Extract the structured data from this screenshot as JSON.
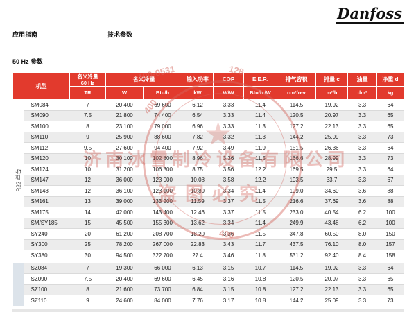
{
  "page": {
    "logo_text": "Danfoss",
    "crumb_left": "应用指南",
    "crumb_right": "技术参数",
    "section_title": "50 Hz 参数"
  },
  "colors": {
    "header_red": "#e23a2d",
    "row_alt_gray": "#ececec",
    "group_band_blue": "#dce3ea",
    "watermark_red": "#d4675e"
  },
  "table": {
    "header": {
      "model": "机型",
      "capacity60_line1": "名义冷量",
      "capacity60_line2": "60 Hz",
      "capacity60_unit": "TR",
      "capacity": "名义冷量",
      "capacity_w_unit": "W",
      "capacity_btu_unit": "Btu/h",
      "power": "输入功率",
      "power_unit": "kW",
      "cop": "COP",
      "cop_unit": "W/W",
      "eer": "E.E.R.",
      "eer_unit": "Btu/h /W",
      "disp_volume": "排气容积",
      "disp_volume_unit": "cm³/rev",
      "displacement": "排量 c",
      "displacement_unit": "m³/h",
      "oil": "油量",
      "oil_unit": "dm³",
      "net_weight": "净重 d",
      "net_weight_unit": "kg"
    },
    "groups": [
      {
        "label": "R22 单台",
        "band": false,
        "rows": [
          [
            "SM084",
            "7",
            "20 400",
            "69 600",
            "6.12",
            "3.33",
            "11.4",
            "114.5",
            "19.92",
            "3.3",
            "64"
          ],
          [
            "SM090",
            "7.5",
            "21 800",
            "74 400",
            "6.54",
            "3.33",
            "11.4",
            "120.5",
            "20.97",
            "3.3",
            "65"
          ],
          [
            "SM100",
            "8",
            "23 100",
            "79 000",
            "6.96",
            "3.33",
            "11.3",
            "127.2",
            "22.13",
            "3.3",
            "65"
          ],
          [
            "SM110",
            "9",
            "25 900",
            "88 600",
            "7.82",
            "3.32",
            "11.3",
            "144.2",
            "25.09",
            "3.3",
            "73"
          ],
          [
            "SM112",
            "9.5",
            "27 600",
            "94 400",
            "7.92",
            "3.49",
            "11.9",
            "151.5",
            "26.36",
            "3.3",
            "64"
          ],
          [
            "SM120",
            "10",
            "30 100",
            "102 800",
            "8.96",
            "3.36",
            "11.5",
            "166.6",
            "28.99",
            "3.3",
            "73"
          ],
          [
            "SM124",
            "10",
            "31 200",
            "106 300",
            "8.75",
            "3.56",
            "12.2",
            "169.5",
            "29.5",
            "3.3",
            "64"
          ],
          [
            "SM147",
            "12",
            "36 000",
            "123 000",
            "10.08",
            "3.58",
            "12.2",
            "193.5",
            "33.7",
            "3.3",
            "67"
          ],
          [
            "SM148",
            "12",
            "36 100",
            "123 100",
            "10.80",
            "3.34",
            "11.4",
            "199.0",
            "34.60",
            "3.6",
            "88"
          ],
          [
            "SM161",
            "13",
            "39 000",
            "133 200",
            "11.59",
            "3.37",
            "11.5",
            "216.6",
            "37.69",
            "3.6",
            "88"
          ],
          [
            "SM175",
            "14",
            "42 000",
            "143 400",
            "12.46",
            "3.37",
            "11.5",
            "233.0",
            "40.54",
            "6.2",
            "100"
          ],
          [
            "SM/SY185",
            "15",
            "45 500",
            "155 300",
            "13.62",
            "3.34",
            "11.4",
            "249.9",
            "43.48",
            "6.2",
            "100"
          ],
          [
            "SY240",
            "20",
            "61 200",
            "208 700",
            "18.20",
            "3.36",
            "11.5",
            "347.8",
            "60.50",
            "8.0",
            "150"
          ],
          [
            "SY300",
            "25",
            "78 200",
            "267 000",
            "22.83",
            "3.43",
            "11.7",
            "437.5",
            "76.10",
            "8.0",
            "157"
          ],
          [
            "SY380",
            "30",
            "94 500",
            "322 700",
            "27.4",
            "3.46",
            "11.8",
            "531.2",
            "92.40",
            "8.4",
            "158"
          ]
        ]
      },
      {
        "label": "",
        "band": true,
        "rows": [
          [
            "SZ084",
            "7",
            "19 300",
            "66 000",
            "6.13",
            "3.15",
            "10.7",
            "114.5",
            "19.92",
            "3.3",
            "64"
          ],
          [
            "SZ090",
            "7.5",
            "20 400",
            "69 600",
            "6.45",
            "3.16",
            "10.8",
            "120.5",
            "20.97",
            "3.3",
            "65"
          ],
          [
            "SZ100",
            "8",
            "21 600",
            "73 700",
            "6.84",
            "3.15",
            "10.8",
            "127.2",
            "22.13",
            "3.3",
            "65"
          ],
          [
            "SZ110",
            "9",
            "24 600",
            "84 000",
            "7.76",
            "3.17",
            "10.8",
            "144.2",
            "25.09",
            "3.3",
            "73"
          ]
        ]
      }
    ]
  },
  "watermark": {
    "star": "★",
    "company": "济南冰雪制冷设备有限公司",
    "warning": "盗图必究",
    "digits1": "400-0531",
    "digits2": "128",
    "digits3": "400",
    "digits4": "400"
  }
}
